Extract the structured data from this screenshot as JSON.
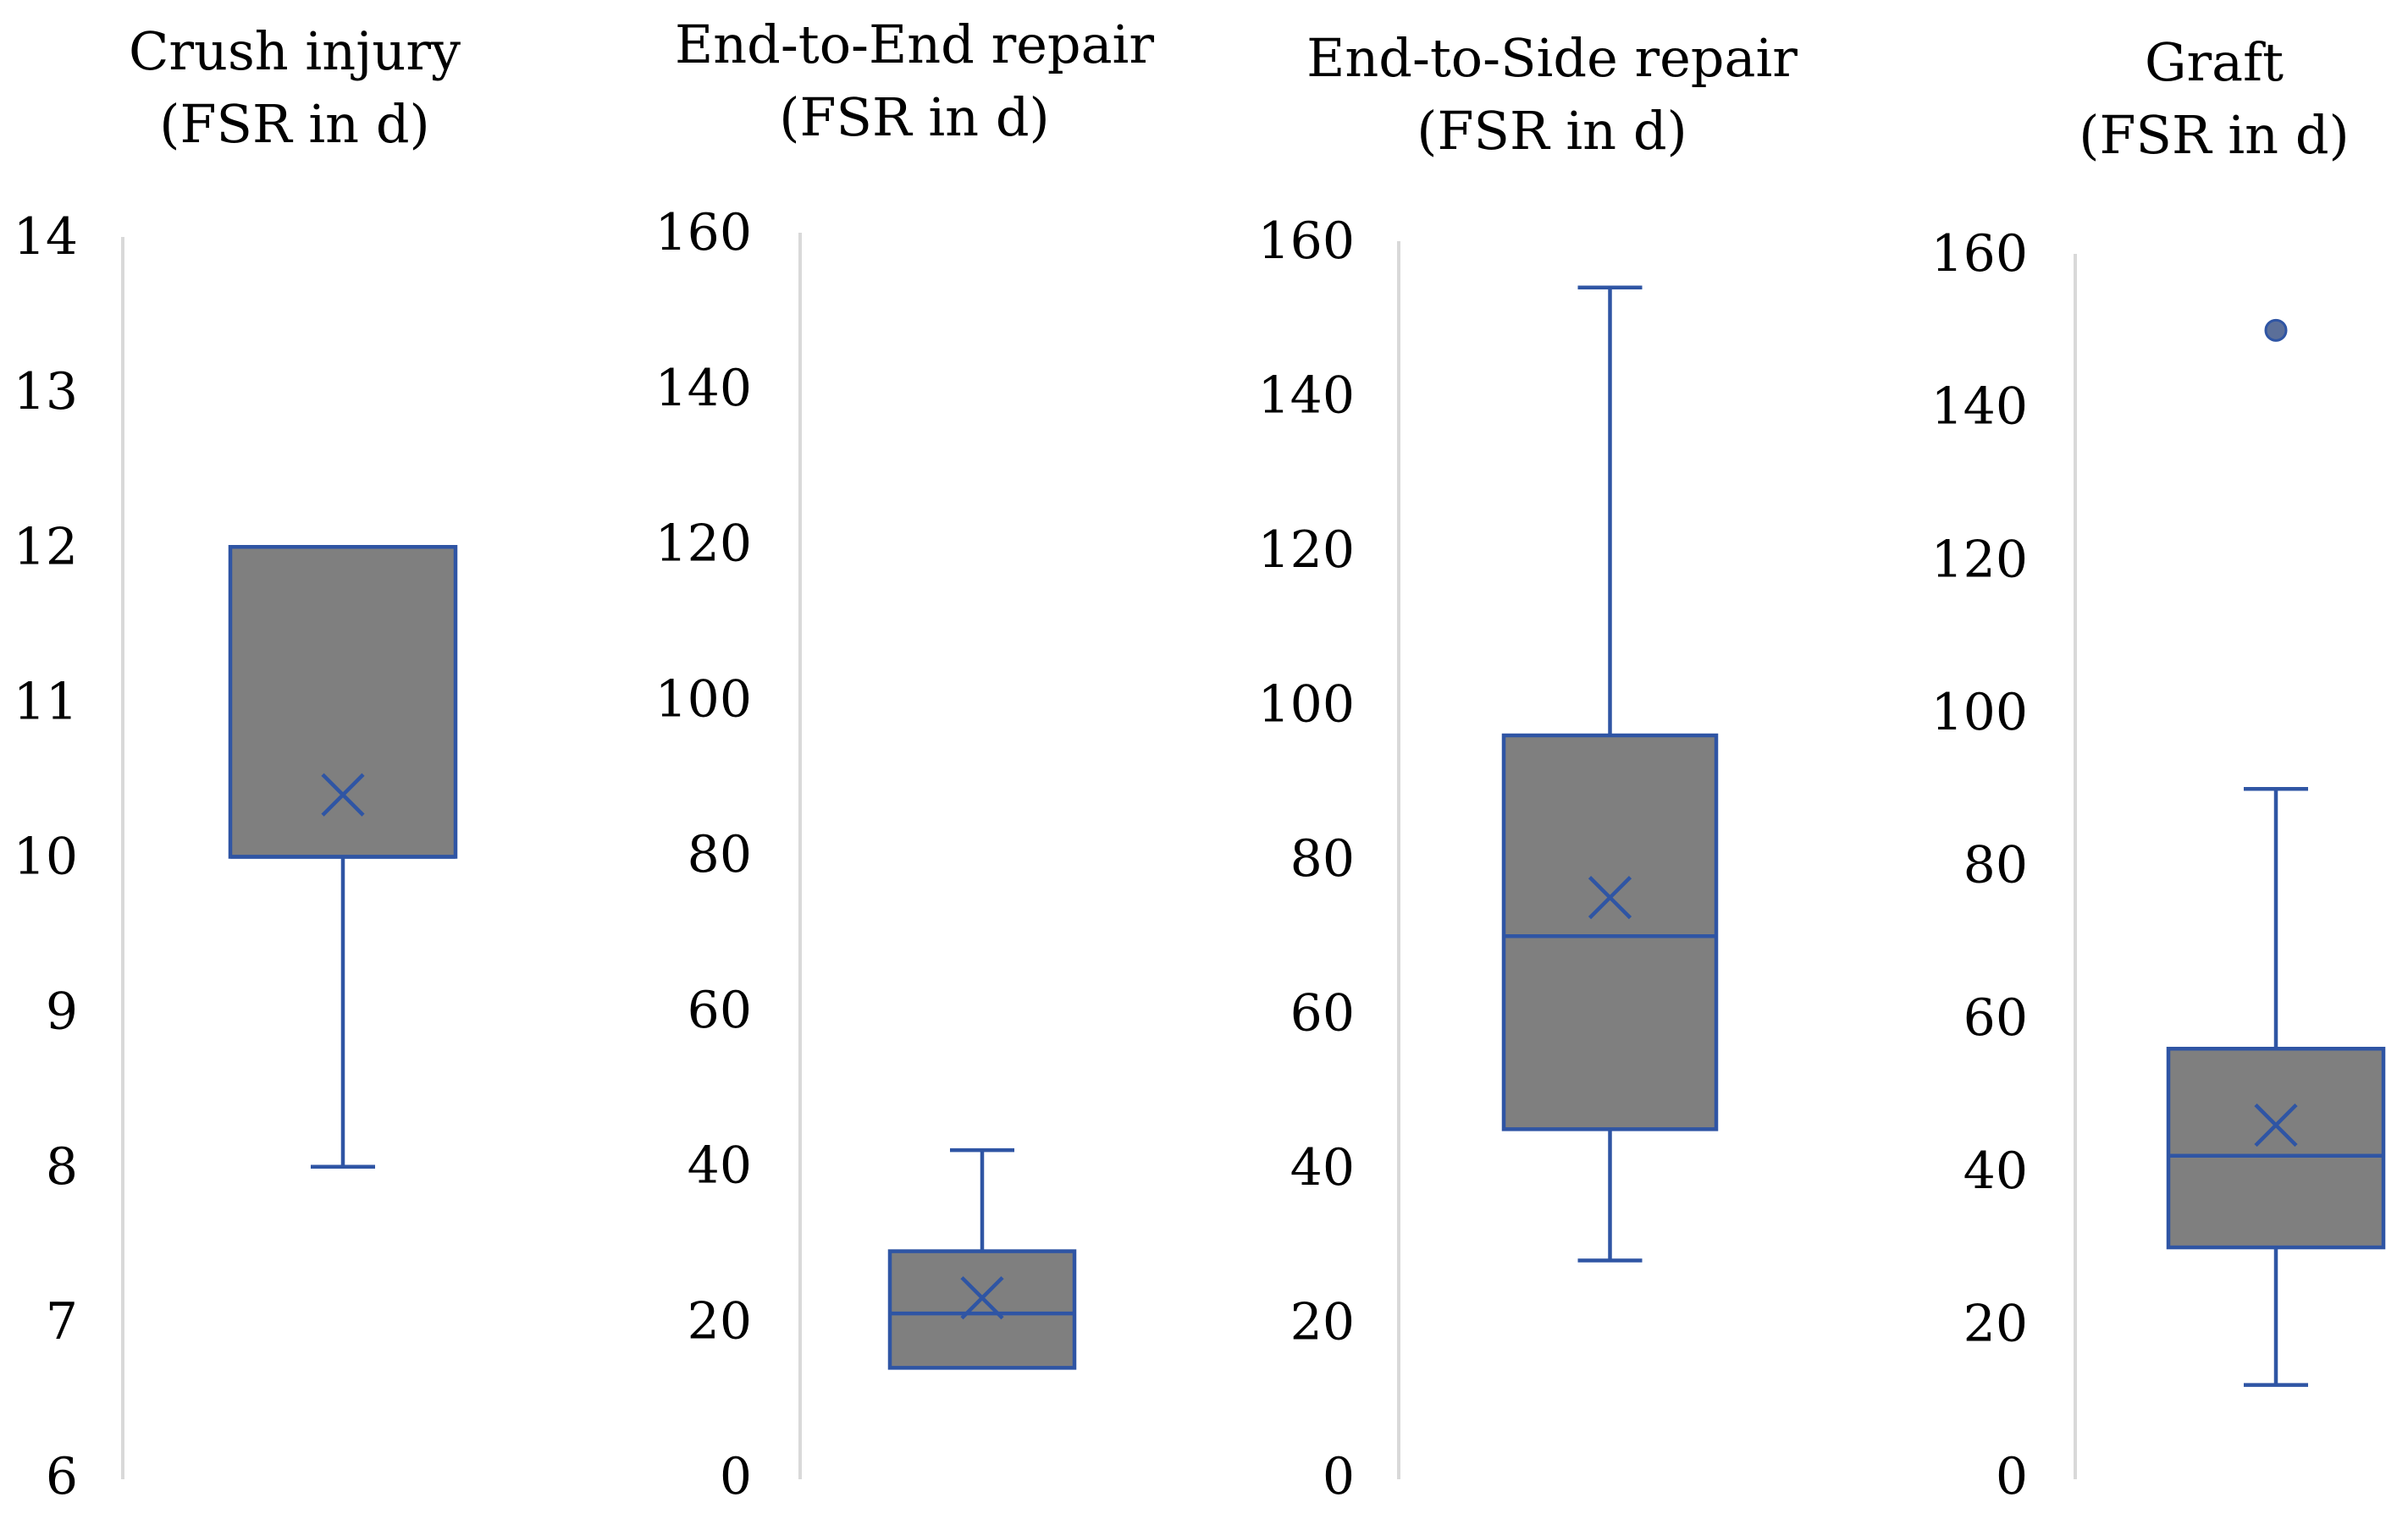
{
  "chart_data": [
    {
      "type": "box",
      "title": [
        "Crush injury",
        "(FSR in d)"
      ],
      "ylim": [
        6,
        14
      ],
      "yticks": [
        6,
        7,
        8,
        9,
        10,
        11,
        12,
        13,
        14
      ],
      "stats": {
        "min": 8,
        "q1": 10,
        "median": 10,
        "q3": 12,
        "max": 12,
        "mean": 10.4,
        "outliers": []
      }
    },
    {
      "type": "box",
      "title": [
        "End-to-End repair",
        "(FSR in d)"
      ],
      "ylim": [
        0,
        160
      ],
      "yticks": [
        0,
        20,
        40,
        60,
        80,
        100,
        120,
        140,
        160
      ],
      "stats": {
        "min": 14,
        "q1": 14,
        "median": 21,
        "q3": 29,
        "max": 42,
        "mean": 23,
        "outliers": []
      }
    },
    {
      "type": "box",
      "title": [
        "End-to-Side repair",
        "(FSR in d)"
      ],
      "ylim": [
        0,
        160
      ],
      "yticks": [
        0,
        20,
        40,
        60,
        80,
        100,
        120,
        140,
        160
      ],
      "stats": {
        "min": 28,
        "q1": 45,
        "median": 70,
        "q3": 96,
        "max": 154,
        "mean": 75,
        "outliers": []
      }
    },
    {
      "type": "box",
      "title": [
        "Graft",
        "(FSR in d)"
      ],
      "ylim": [
        0,
        160
      ],
      "yticks": [
        0,
        20,
        40,
        60,
        80,
        100,
        120,
        140,
        160
      ],
      "stats": {
        "min": 12,
        "q1": 30,
        "median": 42,
        "q3": 56,
        "max": 90,
        "mean": 46,
        "outliers": [
          150
        ]
      }
    }
  ],
  "colors": {
    "box_fill": "#7f7f7f",
    "box_stroke": "#2f55a4",
    "axis_line": "#d9d9d9",
    "outlier_fill": "#5b6f99"
  }
}
